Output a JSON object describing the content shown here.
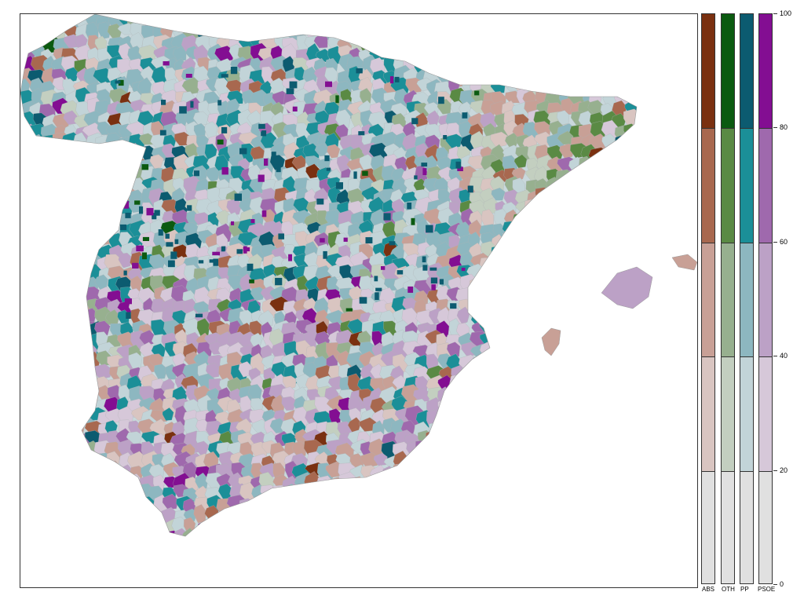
{
  "map": {
    "regions": [
      "Iberian Peninsula",
      "Mallorca",
      "Menorca",
      "Ibiza"
    ],
    "colors": {
      "ABS": [
        "#e0e0e0",
        "#d9c5c1",
        "#c8a096",
        "#a8684f",
        "#7a3010"
      ],
      "OTH": [
        "#e0e0e0",
        "#c3cfc0",
        "#97b08f",
        "#5a8a44",
        "#0b5a10"
      ],
      "PP": [
        "#e0e0e0",
        "#c2d4d8",
        "#8db7c0",
        "#1b8f98",
        "#0c5b70"
      ],
      "PSOE": [
        "#e0e0e0",
        "#d6c8d9",
        "#bca1c6",
        "#9f69ad",
        "#830e92"
      ]
    }
  },
  "legend": {
    "bars": [
      {
        "key": "ABS",
        "label": "ABS"
      },
      {
        "key": "OTH",
        "label": "OTH"
      },
      {
        "key": "PP",
        "label": "PP"
      },
      {
        "key": "PSOE",
        "label": "PSOE"
      }
    ],
    "ticks": [
      "0",
      "20",
      "40",
      "60",
      "80",
      "100"
    ],
    "breaks": [
      0,
      20,
      40,
      60,
      80,
      100
    ]
  }
}
